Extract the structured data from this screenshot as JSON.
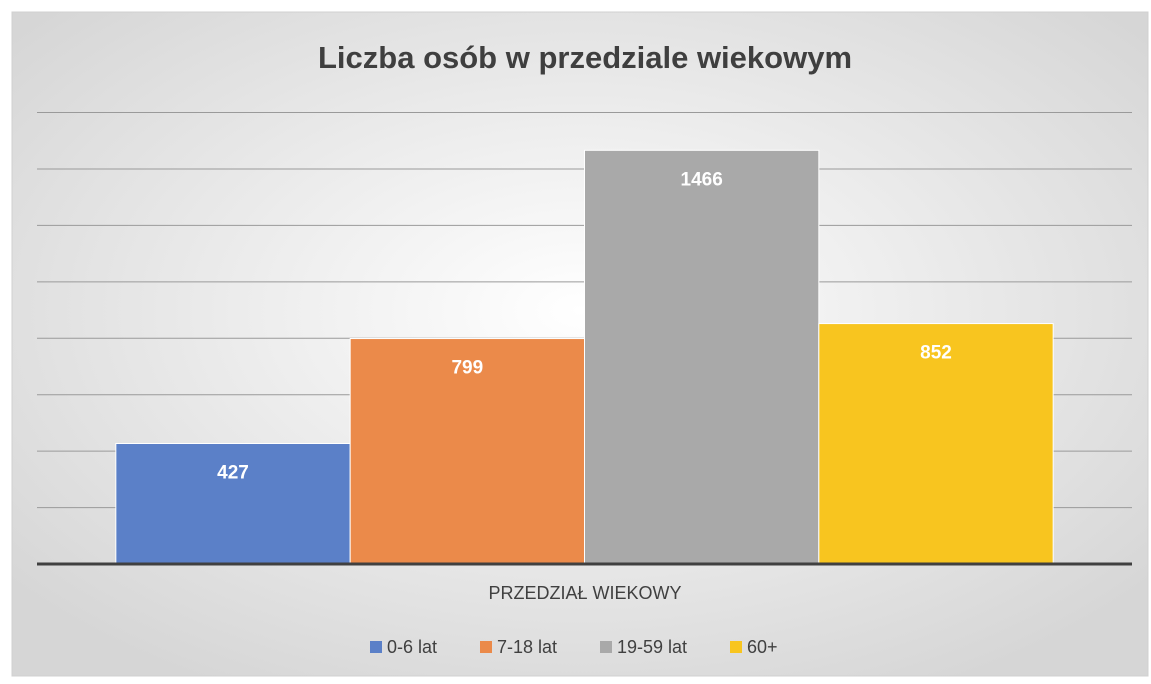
{
  "chart_data": {
    "type": "bar",
    "title": "Liczba osób w przedziale wiekowym",
    "x_label": "PRZEDZIAŁ WIEKOWY",
    "categories": [
      null
    ],
    "series": [
      {
        "name": "0-6 lat",
        "color": "#5b80c8",
        "values": [
          427
        ]
      },
      {
        "name": "7-18 lat",
        "color": "#eb8a4a",
        "values": [
          799
        ]
      },
      {
        "name": "19-59 lat",
        "color": "#a9a9a9",
        "values": [
          1466
        ]
      },
      {
        "name": "60+",
        "color": "#f8c51f",
        "values": [
          852
        ]
      }
    ],
    "ylim": [
      0,
      1600
    ],
    "yticks": [
      0,
      200,
      400,
      600,
      800,
      1000,
      1200,
      1400,
      1600
    ],
    "grid": true,
    "legend": "bottom"
  }
}
